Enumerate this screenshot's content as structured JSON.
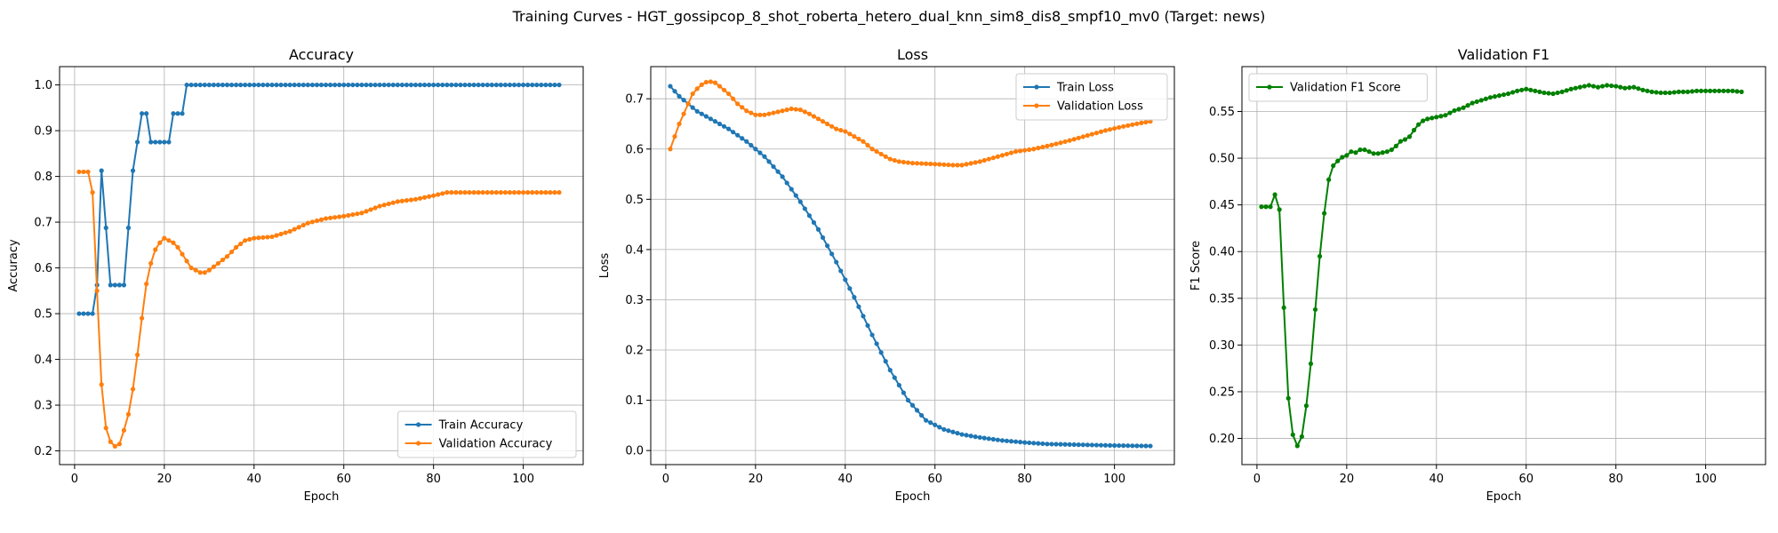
{
  "suptitle": "Training Curves - HGT_gossipcop_8_shot_roberta_hetero_dual_knn_sim8_dis8_smpf10_mv0 (Target: news)",
  "colors": {
    "blue": "#1f77b4",
    "orange": "#ff7f0e",
    "green": "#008000",
    "grid": "#b0b0b0"
  },
  "chart_data": [
    {
      "type": "line",
      "title": "Accuracy",
      "xlabel": "Epoch",
      "ylabel": "Accuracy",
      "xlim": [
        -3.35,
        113.35
      ],
      "ylim": [
        0.17,
        1.04
      ],
      "xticks": [
        0,
        20,
        40,
        60,
        80,
        100
      ],
      "yticks": [
        0.2,
        0.3,
        0.4,
        0.5,
        0.6,
        0.7,
        0.8,
        0.9,
        1.0
      ],
      "ytick_labels": [
        "0.2",
        "0.3",
        "0.4",
        "0.5",
        "0.6",
        "0.7",
        "0.8",
        "0.9",
        "1.0"
      ],
      "grid": true,
      "legend_position": "lower right",
      "series": [
        {
          "name": "Train Accuracy",
          "color": "#1f77b4",
          "points": [
            [
              1,
              0.5
            ],
            [
              2,
              0.5
            ],
            [
              3,
              0.5
            ],
            [
              4,
              0.5
            ],
            [
              5,
              0.5625
            ],
            [
              6,
              0.8125
            ],
            [
              7,
              0.6875
            ],
            [
              8,
              0.5625
            ],
            [
              9,
              0.5625
            ],
            [
              10,
              0.5625
            ],
            [
              11,
              0.5625
            ],
            [
              12,
              0.6875
            ],
            [
              13,
              0.8125
            ],
            [
              14,
              0.875
            ],
            [
              15,
              0.9375
            ],
            [
              16,
              0.9375
            ],
            [
              17,
              0.875
            ],
            [
              18,
              0.875
            ],
            [
              19,
              0.875
            ],
            [
              20,
              0.875
            ],
            [
              21,
              0.875
            ],
            [
              22,
              0.9375
            ],
            [
              23,
              0.9375
            ],
            [
              24,
              0.9375
            ],
            [
              25,
              1.0
            ],
            [
              108,
              1.0
            ]
          ]
        },
        {
          "name": "Validation Accuracy",
          "color": "#ff7f0e",
          "points": [
            [
              1,
              0.81
            ],
            [
              2,
              0.81
            ],
            [
              3,
              0.81
            ],
            [
              4,
              0.765
            ],
            [
              5,
              0.55
            ],
            [
              6,
              0.345
            ],
            [
              7,
              0.25
            ],
            [
              8,
              0.22
            ],
            [
              9,
              0.21
            ],
            [
              10,
              0.215
            ],
            [
              11,
              0.245
            ],
            [
              12,
              0.28
            ],
            [
              13,
              0.335
            ],
            [
              14,
              0.41
            ],
            [
              15,
              0.49
            ],
            [
              16,
              0.565
            ],
            [
              17,
              0.61
            ],
            [
              18,
              0.64
            ],
            [
              19,
              0.655
            ],
            [
              20,
              0.665
            ],
            [
              21,
              0.66
            ],
            [
              22,
              0.655
            ],
            [
              23,
              0.645
            ],
            [
              24,
              0.63
            ],
            [
              25,
              0.615
            ],
            [
              26,
              0.6
            ],
            [
              27,
              0.595
            ],
            [
              28,
              0.59
            ],
            [
              29,
              0.59
            ],
            [
              30,
              0.595
            ],
            [
              32,
              0.61
            ],
            [
              34,
              0.625
            ],
            [
              36,
              0.645
            ],
            [
              38,
              0.66
            ],
            [
              40,
              0.665
            ],
            [
              44,
              0.668
            ],
            [
              48,
              0.68
            ],
            [
              52,
              0.698
            ],
            [
              56,
              0.708
            ],
            [
              60,
              0.713
            ],
            [
              64,
              0.72
            ],
            [
              68,
              0.735
            ],
            [
              72,
              0.745
            ],
            [
              76,
              0.75
            ],
            [
              80,
              0.758
            ],
            [
              83,
              0.765
            ],
            [
              108,
              0.765
            ]
          ]
        }
      ]
    },
    {
      "type": "line",
      "title": "Loss",
      "xlabel": "Epoch",
      "ylabel": "Loss",
      "xlim": [
        -3.35,
        113.35
      ],
      "ylim": [
        -0.028,
        0.764
      ],
      "xticks": [
        0,
        20,
        40,
        60,
        80,
        100
      ],
      "yticks": [
        0.0,
        0.1,
        0.2,
        0.3,
        0.4,
        0.5,
        0.6,
        0.7
      ],
      "ytick_labels": [
        "0.0",
        "0.1",
        "0.2",
        "0.3",
        "0.4",
        "0.5",
        "0.6",
        "0.7"
      ],
      "grid": true,
      "legend_position": "upper right",
      "series": [
        {
          "name": "Train Loss",
          "color": "#1f77b4",
          "points": [
            [
              1,
              0.725
            ],
            [
              3,
              0.705
            ],
            [
              5,
              0.69
            ],
            [
              7,
              0.675
            ],
            [
              10,
              0.66
            ],
            [
              14,
              0.64
            ],
            [
              18,
              0.615
            ],
            [
              22,
              0.585
            ],
            [
              26,
              0.545
            ],
            [
              30,
              0.495
            ],
            [
              34,
              0.44
            ],
            [
              38,
              0.375
            ],
            [
              42,
              0.305
            ],
            [
              46,
              0.23
            ],
            [
              50,
              0.16
            ],
            [
              54,
              0.1
            ],
            [
              58,
              0.06
            ],
            [
              62,
              0.042
            ],
            [
              66,
              0.032
            ],
            [
              70,
              0.026
            ],
            [
              75,
              0.02
            ],
            [
              80,
              0.016
            ],
            [
              85,
              0.013
            ],
            [
              90,
              0.012
            ],
            [
              95,
              0.011
            ],
            [
              100,
              0.01
            ],
            [
              108,
              0.009
            ]
          ]
        },
        {
          "name": "Validation Loss",
          "color": "#ff7f0e",
          "points": [
            [
              1,
              0.6
            ],
            [
              2,
              0.625
            ],
            [
              3,
              0.65
            ],
            [
              4,
              0.67
            ],
            [
              5,
              0.69
            ],
            [
              6,
              0.71
            ],
            [
              7,
              0.72
            ],
            [
              8,
              0.728
            ],
            [
              9,
              0.733
            ],
            [
              10,
              0.734
            ],
            [
              11,
              0.732
            ],
            [
              12,
              0.725
            ],
            [
              14,
              0.71
            ],
            [
              16,
              0.69
            ],
            [
              18,
              0.676
            ],
            [
              20,
              0.668
            ],
            [
              22,
              0.668
            ],
            [
              24,
              0.672
            ],
            [
              26,
              0.676
            ],
            [
              28,
              0.68
            ],
            [
              30,
              0.678
            ],
            [
              32,
              0.67
            ],
            [
              34,
              0.66
            ],
            [
              36,
              0.65
            ],
            [
              38,
              0.64
            ],
            [
              40,
              0.635
            ],
            [
              42,
              0.625
            ],
            [
              44,
              0.615
            ],
            [
              46,
              0.6
            ],
            [
              48,
              0.59
            ],
            [
              50,
              0.58
            ],
            [
              52,
              0.575
            ],
            [
              55,
              0.572
            ],
            [
              60,
              0.57
            ],
            [
              64,
              0.568
            ],
            [
              66,
              0.568
            ],
            [
              70,
              0.575
            ],
            [
              74,
              0.585
            ],
            [
              78,
              0.595
            ],
            [
              82,
              0.6
            ],
            [
              86,
              0.608
            ],
            [
              90,
              0.617
            ],
            [
              94,
              0.627
            ],
            [
              98,
              0.637
            ],
            [
              102,
              0.645
            ],
            [
              106,
              0.652
            ],
            [
              108,
              0.655
            ]
          ]
        }
      ]
    },
    {
      "type": "line",
      "title": "Validation F1",
      "xlabel": "Epoch",
      "ylabel": "F1 Score",
      "xlim": [
        -3.35,
        113.35
      ],
      "ylim": [
        0.172,
        0.598
      ],
      "xticks": [
        0,
        20,
        40,
        60,
        80,
        100
      ],
      "yticks": [
        0.2,
        0.25,
        0.3,
        0.35,
        0.4,
        0.45,
        0.5,
        0.55
      ],
      "ytick_labels": [
        "0.20",
        "0.25",
        "0.30",
        "0.35",
        "0.40",
        "0.45",
        "0.50",
        "0.55"
      ],
      "grid": true,
      "legend_position": "upper left",
      "series": [
        {
          "name": "Validation F1 Score",
          "color": "#008000",
          "points": [
            [
              1,
              0.448
            ],
            [
              2,
              0.448
            ],
            [
              3,
              0.448
            ],
            [
              4,
              0.461
            ],
            [
              5,
              0.445
            ],
            [
              6,
              0.34
            ],
            [
              7,
              0.243
            ],
            [
              8,
              0.204
            ],
            [
              9,
              0.192
            ],
            [
              10,
              0.202
            ],
            [
              11,
              0.235
            ],
            [
              12,
              0.28
            ],
            [
              13,
              0.338
            ],
            [
              14,
              0.395
            ],
            [
              15,
              0.441
            ],
            [
              16,
              0.477
            ],
            [
              17,
              0.492
            ],
            [
              18,
              0.497
            ],
            [
              19,
              0.501
            ],
            [
              20,
              0.503
            ],
            [
              21,
              0.507
            ],
            [
              22,
              0.506
            ],
            [
              23,
              0.509
            ],
            [
              24,
              0.509
            ],
            [
              25,
              0.507
            ],
            [
              26,
              0.505
            ],
            [
              27,
              0.505
            ],
            [
              28,
              0.506
            ],
            [
              29,
              0.507
            ],
            [
              30,
              0.509
            ],
            [
              31,
              0.513
            ],
            [
              32,
              0.518
            ],
            [
              33,
              0.52
            ],
            [
              34,
              0.523
            ],
            [
              35,
              0.53
            ],
            [
              36,
              0.536
            ],
            [
              37,
              0.54
            ],
            [
              38,
              0.542
            ],
            [
              39,
              0.543
            ],
            [
              40,
              0.544
            ],
            [
              42,
              0.546
            ],
            [
              44,
              0.551
            ],
            [
              46,
              0.554
            ],
            [
              48,
              0.559
            ],
            [
              50,
              0.562
            ],
            [
              52,
              0.565
            ],
            [
              54,
              0.567
            ],
            [
              56,
              0.569
            ],
            [
              58,
              0.572
            ],
            [
              60,
              0.574
            ],
            [
              62,
              0.572
            ],
            [
              64,
              0.57
            ],
            [
              66,
              0.569
            ],
            [
              68,
              0.571
            ],
            [
              70,
              0.574
            ],
            [
              72,
              0.576
            ],
            [
              74,
              0.578
            ],
            [
              76,
              0.576
            ],
            [
              78,
              0.578
            ],
            [
              80,
              0.577
            ],
            [
              82,
              0.575
            ],
            [
              84,
              0.576
            ],
            [
              86,
              0.573
            ],
            [
              88,
              0.571
            ],
            [
              90,
              0.57
            ],
            [
              92,
              0.57
            ],
            [
              94,
              0.571
            ],
            [
              96,
              0.571
            ],
            [
              98,
              0.572
            ],
            [
              100,
              0.572
            ],
            [
              104,
              0.572
            ],
            [
              106,
              0.572
            ],
            [
              108,
              0.571
            ]
          ]
        }
      ]
    }
  ]
}
